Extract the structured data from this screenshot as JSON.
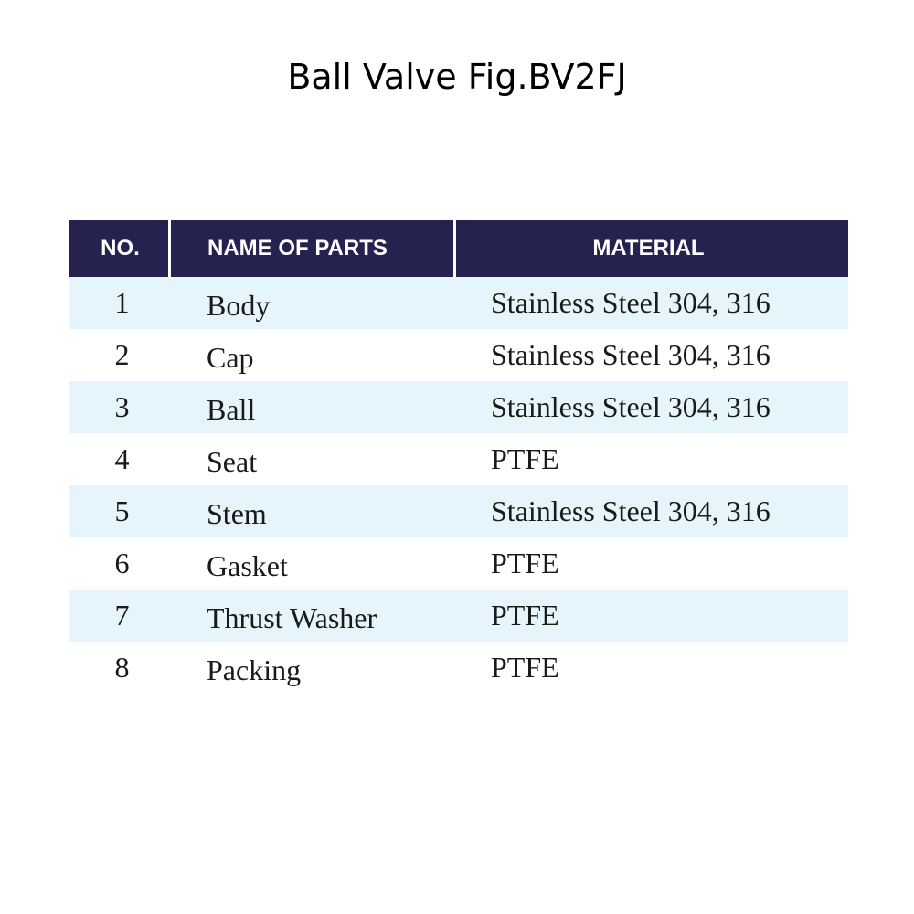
{
  "title": "Ball Valve Fig.BV2FJ",
  "table": {
    "headers": [
      "NO.",
      "NAME OF PARTS",
      "MATERIAL"
    ],
    "rows": [
      {
        "no": "1",
        "part": "Body",
        "material": "Stainless Steel 304, 316"
      },
      {
        "no": "2",
        "part": "Cap",
        "material": "Stainless Steel 304, 316"
      },
      {
        "no": "3",
        "part": "Ball",
        "material": "Stainless Steel 304, 316"
      },
      {
        "no": "4",
        "part": "Seat",
        "material": "PTFE"
      },
      {
        "no": "5",
        "part": "Stem",
        "material": "Stainless Steel 304, 316"
      },
      {
        "no": "6",
        "part": "Gasket",
        "material": "PTFE"
      },
      {
        "no": "7",
        "part": "Thrust Washer",
        "material": "PTFE"
      },
      {
        "no": "8",
        "part": "Packing",
        "material": "PTFE"
      }
    ]
  },
  "colors": {
    "header_bg": "#25224f",
    "shaded_row_bg": "#e6f4fb"
  }
}
